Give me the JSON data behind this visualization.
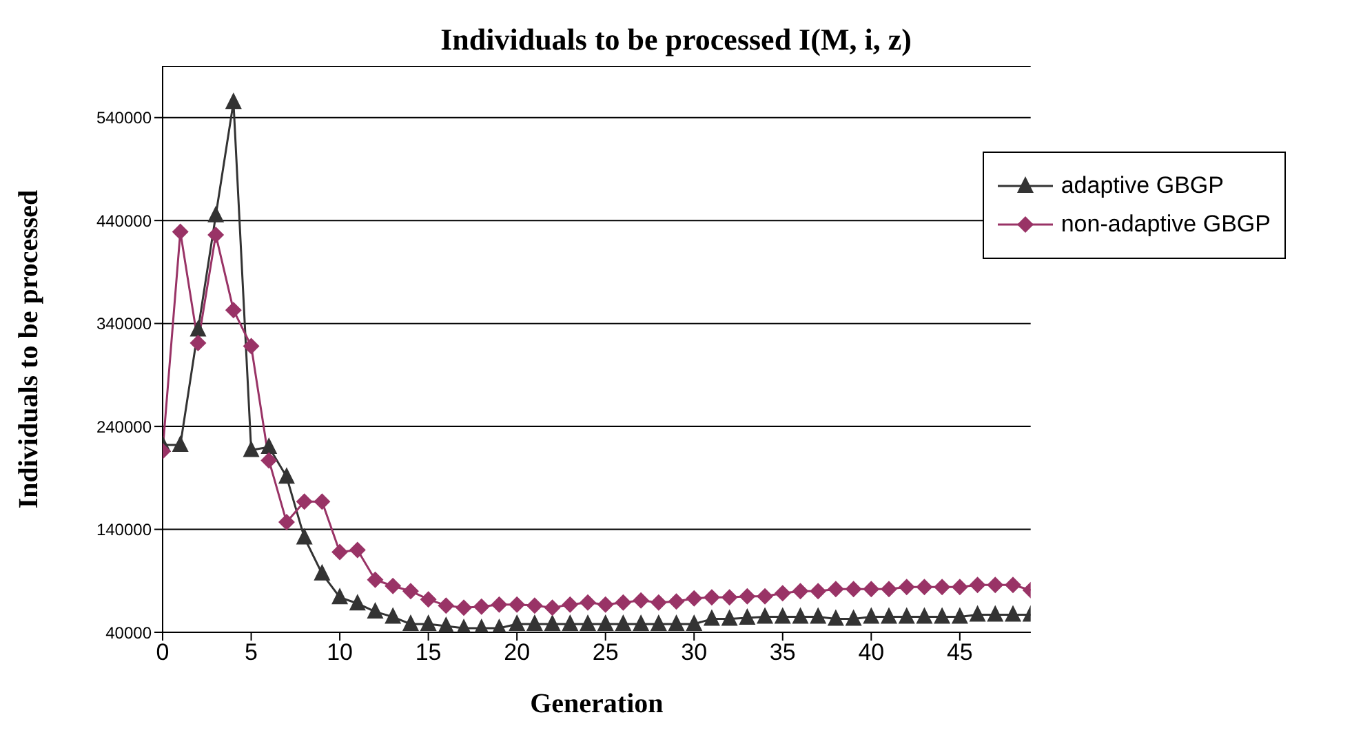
{
  "chart_data": {
    "type": "line",
    "title": "Individuals to be processed I(M, i, z)",
    "xlabel": "Generation",
    "ylabel": "Individuals to be processed",
    "x": [
      0,
      1,
      2,
      3,
      4,
      5,
      6,
      7,
      8,
      9,
      10,
      11,
      12,
      13,
      14,
      15,
      16,
      17,
      18,
      19,
      20,
      21,
      22,
      23,
      24,
      25,
      26,
      27,
      28,
      29,
      30,
      31,
      32,
      33,
      34,
      35,
      36,
      37,
      38,
      39,
      40,
      41,
      42,
      43,
      44,
      45,
      46,
      47,
      48,
      49
    ],
    "xlim": [
      0,
      49
    ],
    "xticks": [
      0,
      5,
      10,
      15,
      20,
      25,
      30,
      35,
      40,
      45
    ],
    "ylim": [
      40000,
      590000
    ],
    "yticks": [
      40000,
      140000,
      240000,
      340000,
      440000,
      540000
    ],
    "grid": "y",
    "legend": "top right",
    "line_style": "solid",
    "series": [
      {
        "name": "adaptive GBGP",
        "color": "#333333",
        "marker": "triangle",
        "values": [
          222000,
          222000,
          334000,
          445000,
          555000,
          217000,
          220000,
          191000,
          132000,
          97000,
          74000,
          68000,
          60000,
          55000,
          48000,
          48000,
          46000,
          44000,
          44000,
          44000,
          48000,
          48000,
          48000,
          48000,
          48000,
          48000,
          48000,
          48000,
          48000,
          48000,
          48000,
          53000,
          53000,
          54000,
          55000,
          55000,
          55000,
          55000,
          53000,
          53000,
          55000,
          55000,
          55000,
          55000,
          55000,
          55000,
          57000,
          57000,
          57000,
          57000
        ]
      },
      {
        "name": "non-adaptive GBGP",
        "color": "#993366",
        "marker": "diamond",
        "values": [
          216000,
          429000,
          321000,
          426000,
          353000,
          318000,
          207000,
          147000,
          167000,
          167000,
          118000,
          120000,
          91000,
          85000,
          80000,
          72000,
          66000,
          64000,
          65000,
          67000,
          67000,
          66000,
          64000,
          67000,
          69000,
          67000,
          69000,
          71000,
          69000,
          70000,
          73000,
          74000,
          74000,
          75000,
          75000,
          78000,
          80000,
          80000,
          82000,
          82000,
          82000,
          82000,
          84000,
          84000,
          84000,
          84000,
          86000,
          86000,
          86000,
          81000
        ]
      }
    ]
  }
}
